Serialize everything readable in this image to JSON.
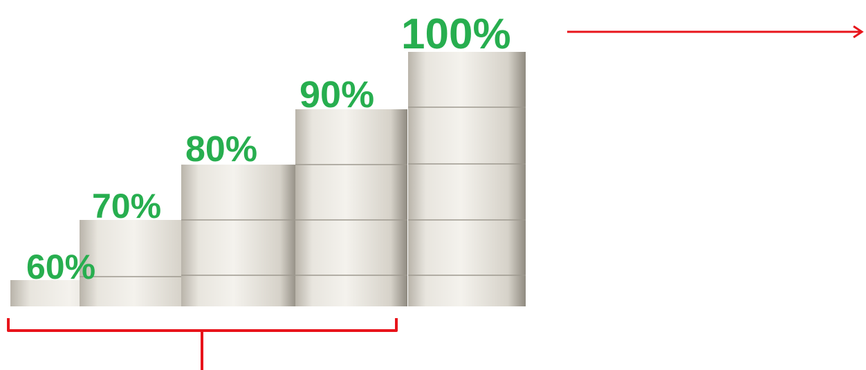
{
  "labels": [
    "60%",
    "70%",
    "80%",
    "90%",
    "100%"
  ]
}
